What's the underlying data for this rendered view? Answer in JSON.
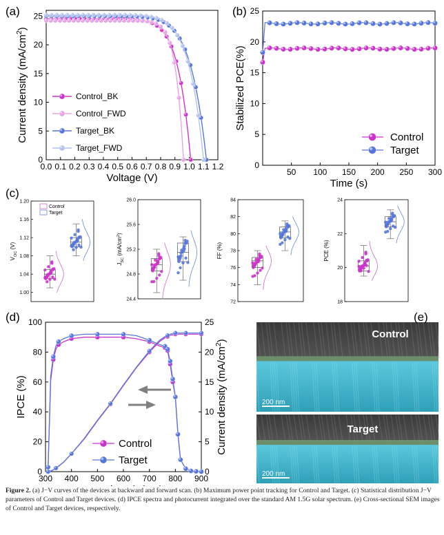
{
  "colors": {
    "control_bk": "#cc33cc",
    "control_fwd": "#e6a3e6",
    "target_bk": "#5577dd",
    "target_fwd": "#b3c2ee",
    "control": "#cc33cc",
    "target": "#5577dd",
    "box_control": "#cc66cc",
    "box_target": "#6688dd"
  },
  "panels": {
    "a": {
      "label": "(a)"
    },
    "b": {
      "label": "(b)"
    },
    "c": {
      "label": "(c)"
    },
    "d": {
      "label": "(d)"
    },
    "e": {
      "label": "(e)"
    }
  },
  "sem": {
    "control_label": "Control",
    "target_label": "Target",
    "scale_control": "200 nm",
    "scale_target": "200 nm"
  },
  "caption": {
    "fig": "Figure 2.",
    "text": " (a) J−V curves of the devices at backward and forward scan. (b) Maximum power point tracking for Control and Target. (c) Statistical distribution J−V parameters of Control and Target devices. (d) IPCE spectra and photocurrent integrated over the standard AM 1.5G solar spectrum. (e) Cross-sectional SEM images of Control and Target devices, respectively."
  },
  "chart_data": [
    {
      "id": "a",
      "type": "line",
      "xlabel": "Voltage (V)",
      "ylabel": "Current density (mA/cm2)",
      "xlim": [
        0.0,
        1.2
      ],
      "ylim": [
        0,
        26
      ],
      "xticks": [
        "0.0",
        "0.1",
        "0.2",
        "0.3",
        "0.4",
        "0.5",
        "0.6",
        "0.7",
        "0.8",
        "0.9",
        "1.0",
        "1.1",
        "1.2"
      ],
      "yticks": [
        "0",
        "5",
        "10",
        "15",
        "20",
        "25"
      ],
      "legend_position": "bottom-left",
      "series": [
        {
          "name": "Control_BK",
          "color_key": "control_bk",
          "voc": 1.01,
          "jsc": 24.5,
          "n": 1.9
        },
        {
          "name": "Control_FWD",
          "color_key": "control_fwd",
          "voc": 0.96,
          "jsc": 24.2,
          "n": 2.9
        },
        {
          "name": "Target_BK",
          "color_key": "target_bk",
          "voc": 1.12,
          "jsc": 25.0,
          "n": 1.7
        },
        {
          "name": "Target_FWD",
          "color_key": "target_fwd",
          "voc": 1.1,
          "jsc": 25.2,
          "n": 1.8
        }
      ]
    },
    {
      "id": "b",
      "type": "line",
      "xlabel": "Time (s)",
      "ylabel": "Stabilized PCE(%)",
      "xlim": [
        0,
        300
      ],
      "ylim": [
        0,
        25
      ],
      "xticks": [
        "50",
        "100",
        "150",
        "200",
        "250",
        "300"
      ],
      "yticks": [
        "0",
        "5",
        "10",
        "15",
        "20",
        "25"
      ],
      "legend_position": "bottom-right",
      "series": [
        {
          "name": "Control",
          "color_key": "control",
          "start": 16.7,
          "steady": 18.9
        },
        {
          "name": "Target",
          "color_key": "target",
          "start": 18.3,
          "steady": 23.0
        }
      ]
    },
    {
      "id": "c1",
      "type": "box",
      "ylabel": "VOC (V)",
      "ylim": [
        0.98,
        1.2
      ],
      "yticks": [
        "1.00",
        "1.04",
        "1.08",
        "1.12",
        "1.16",
        "1.20"
      ],
      "legend": [
        "Control",
        "Target"
      ],
      "groups": [
        {
          "name": "Control",
          "min": 1.01,
          "q1": 1.03,
          "median": 1.04,
          "q3": 1.05,
          "max": 1.08
        },
        {
          "name": "Target",
          "min": 1.08,
          "q1": 1.1,
          "median": 1.11,
          "q3": 1.12,
          "max": 1.15
        }
      ]
    },
    {
      "id": "c2",
      "type": "box",
      "ylabel": "JSC (mA/cm2)",
      "ylim": [
        24.4,
        26.0
      ],
      "yticks": [
        "24.4",
        "24.8",
        "25.2",
        "25.6",
        "26.0"
      ],
      "groups": [
        {
          "name": "Control",
          "min": 24.5,
          "q1": 24.85,
          "median": 24.95,
          "q3": 25.05,
          "max": 25.2
        },
        {
          "name": "Target",
          "min": 24.7,
          "q1": 25.0,
          "median": 25.15,
          "q3": 25.3,
          "max": 25.4
        }
      ]
    },
    {
      "id": "c3",
      "type": "box",
      "ylabel": "FF (%)",
      "ylim": [
        72,
        84
      ],
      "yticks": [
        "72",
        "74",
        "76",
        "78",
        "80",
        "82",
        "84"
      ],
      "groups": [
        {
          "name": "Control",
          "min": 74.0,
          "q1": 76.0,
          "median": 76.8,
          "q3": 77.2,
          "max": 78.0
        },
        {
          "name": "Target",
          "min": 78.0,
          "q1": 79.5,
          "median": 80.2,
          "q3": 80.8,
          "max": 81.5
        }
      ]
    },
    {
      "id": "c4",
      "type": "box",
      "ylabel": "PCE (%)",
      "ylim": [
        18,
        24
      ],
      "yticks": [
        "18",
        "20",
        "22",
        "24"
      ],
      "groups": [
        {
          "name": "Control",
          "min": 19.5,
          "q1": 19.8,
          "median": 20.1,
          "q3": 20.4,
          "max": 21.3
        },
        {
          "name": "Target",
          "min": 21.7,
          "q1": 22.4,
          "median": 22.7,
          "q3": 23.0,
          "max": 23.4
        }
      ]
    },
    {
      "id": "d",
      "type": "line",
      "xlabel": "Wavelength (nm)",
      "ylabel": "IPCE (%)",
      "y2label": "Current density (mA/cm2)",
      "xlim": [
        300,
        900
      ],
      "ylim": [
        0,
        100
      ],
      "y2lim": [
        0,
        25
      ],
      "xticks": [
        "300",
        "400",
        "500",
        "600",
        "700",
        "800",
        "900"
      ],
      "yticks": [
        "0",
        "20",
        "40",
        "60",
        "80",
        "100"
      ],
      "y2ticks": [
        "0",
        "5",
        "10",
        "15",
        "20",
        "25"
      ],
      "legend_position": "bottom-center",
      "series": [
        {
          "name": "Control",
          "color_key": "control",
          "x": [
            310,
            320,
            330,
            340,
            350,
            370,
            400,
            450,
            500,
            550,
            600,
            650,
            700,
            740,
            760,
            770,
            780,
            790,
            800,
            810,
            820,
            840,
            860,
            880,
            900
          ],
          "ipce": [
            3,
            61,
            75,
            82,
            85,
            87,
            89,
            90,
            90,
            90,
            90,
            89,
            87,
            84,
            83,
            81,
            72,
            60,
            50,
            25,
            8,
            2,
            0.5,
            0.2,
            0
          ],
          "jsc": [
            0,
            0.1,
            0.3,
            0.6,
            0.9,
            1.6,
            3.0,
            5.5,
            8.5,
            11.3,
            14.4,
            17.4,
            20.0,
            21.8,
            22.4,
            22.6,
            22.8,
            22.9,
            23.0,
            23.0,
            23.0,
            23.0,
            23.0,
            23.0,
            23.0
          ]
        },
        {
          "name": "Target",
          "color_key": "target",
          "x": [
            310,
            320,
            330,
            340,
            350,
            370,
            400,
            450,
            500,
            550,
            600,
            650,
            700,
            740,
            760,
            770,
            780,
            790,
            800,
            810,
            820,
            840,
            860,
            880,
            900
          ],
          "ipce": [
            3,
            64,
            77,
            84,
            87,
            89,
            91,
            92,
            92,
            92,
            92,
            91,
            88,
            85,
            84,
            82,
            74,
            62,
            50,
            25,
            8,
            2,
            0.5,
            0.2,
            0
          ],
          "jsc": [
            0,
            0.1,
            0.3,
            0.6,
            0.9,
            1.6,
            3.0,
            5.6,
            8.6,
            11.4,
            14.5,
            17.5,
            20.2,
            22.0,
            22.6,
            22.8,
            23.0,
            23.1,
            23.2,
            23.2,
            23.2,
            23.2,
            23.2,
            23.2,
            23.2
          ]
        }
      ]
    }
  ]
}
